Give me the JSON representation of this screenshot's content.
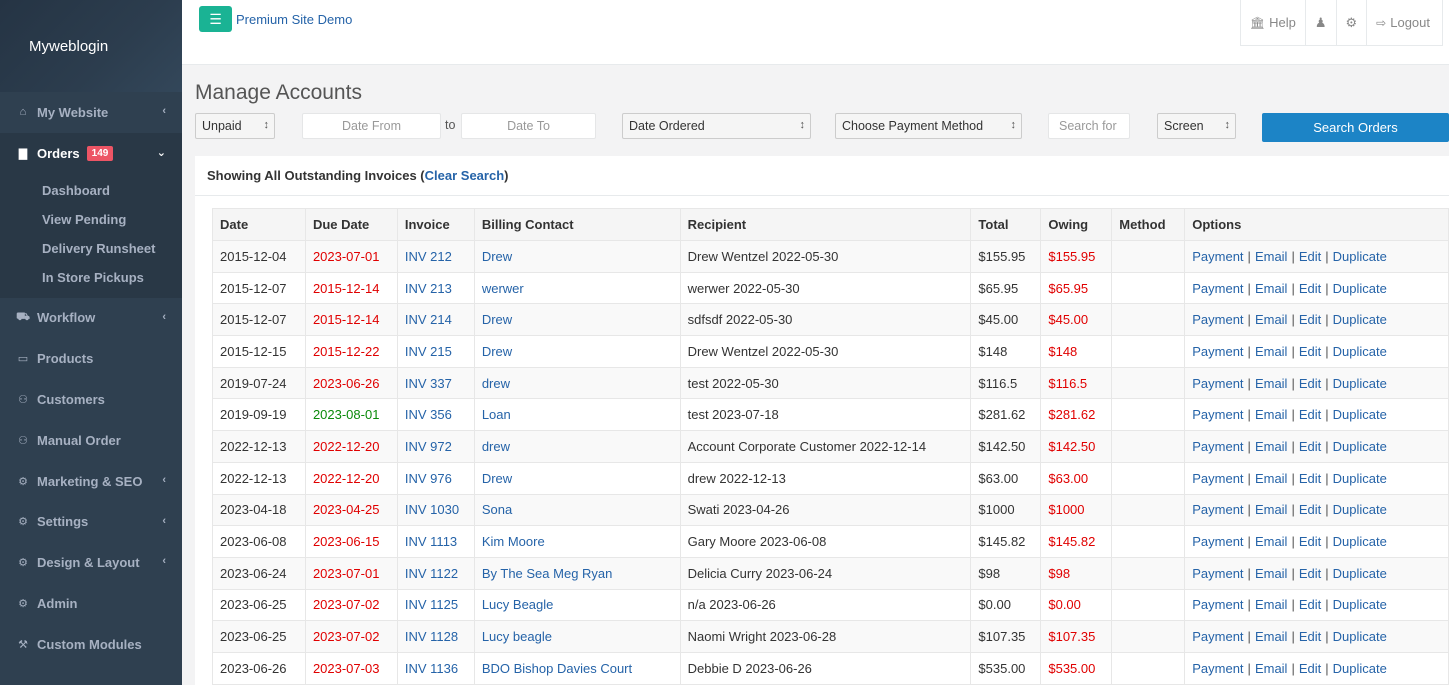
{
  "brand": "Myweblogin",
  "topbar": {
    "site_link": "Premium Site Demo",
    "help": "Help",
    "logout": "Logout"
  },
  "sidebar": {
    "items": [
      {
        "label": "My Website",
        "icon": "home-icon",
        "has_arrow": true
      },
      {
        "label": "Orders",
        "icon": "bar-chart-icon",
        "badge": "149",
        "has_arrow": true,
        "active": true
      },
      {
        "label": "Workflow",
        "icon": "truck-icon",
        "has_arrow": true
      },
      {
        "label": "Products",
        "icon": "desktop-icon",
        "has_arrow": false
      },
      {
        "label": "Customers",
        "icon": "users-icon",
        "has_arrow": false
      },
      {
        "label": "Manual Order",
        "icon": "users-icon",
        "has_arrow": false
      },
      {
        "label": "Marketing & SEO",
        "icon": "gear-icon",
        "has_arrow": true
      },
      {
        "label": "Settings",
        "icon": "gear-icon",
        "has_arrow": true
      },
      {
        "label": "Design & Layout",
        "icon": "gear-icon",
        "has_arrow": true
      },
      {
        "label": "Admin",
        "icon": "gear-icon",
        "has_arrow": false
      },
      {
        "label": "Custom Modules",
        "icon": "wrench-icon",
        "has_arrow": false
      }
    ],
    "orders_sub": [
      "Dashboard",
      "View Pending",
      "Delivery Runsheet",
      "In Store Pickups"
    ]
  },
  "main": {
    "title": "Manage Accounts",
    "filters": {
      "status": "Unpaid",
      "date_from_placeholder": "Date From",
      "to_label": "to",
      "date_to_placeholder": "Date To",
      "date_type": "Date Ordered",
      "payment_method": "Choose Payment Method",
      "search_placeholder": "Search for",
      "output": "Screen",
      "search_button": "Search Orders"
    },
    "panel_heading": "Showing All Outstanding Invoices (",
    "clear_search": "Clear Search",
    "panel_heading_end": ")"
  },
  "table": {
    "headers": [
      "Date",
      "Due Date",
      "Invoice",
      "Billing Contact",
      "Recipient",
      "Total",
      "Owing",
      "Method",
      "Options"
    ],
    "options": [
      "Payment",
      "Email",
      "Edit",
      "Duplicate"
    ],
    "rows": [
      {
        "date": "2015-12-04",
        "due": "2023-07-01",
        "due_status": "overdue",
        "invoice": "INV 212",
        "contact": "Drew",
        "recipient": "Drew Wentzel 2022-05-30",
        "total": "$155.95",
        "owing": "$155.95",
        "method": ""
      },
      {
        "date": "2015-12-07",
        "due": "2015-12-14",
        "due_status": "overdue",
        "invoice": "INV 213",
        "contact": "werwer",
        "recipient": "werwer 2022-05-30",
        "total": "$65.95",
        "owing": "$65.95",
        "method": ""
      },
      {
        "date": "2015-12-07",
        "due": "2015-12-14",
        "due_status": "overdue",
        "invoice": "INV 214",
        "contact": "Drew",
        "recipient": "sdfsdf 2022-05-30",
        "total": "$45.00",
        "owing": "$45.00",
        "method": ""
      },
      {
        "date": "2015-12-15",
        "due": "2015-12-22",
        "due_status": "overdue",
        "invoice": "INV 215",
        "contact": "Drew",
        "recipient": "Drew Wentzel 2022-05-30",
        "total": "$148",
        "owing": "$148",
        "method": ""
      },
      {
        "date": "2019-07-24",
        "due": "2023-06-26",
        "due_status": "overdue",
        "invoice": "INV 337",
        "contact": "drew",
        "recipient": "test 2022-05-30",
        "total": "$116.5",
        "owing": "$116.5",
        "method": ""
      },
      {
        "date": "2019-09-19",
        "due": "2023-08-01",
        "due_status": "current",
        "invoice": "INV 356",
        "contact": "Loan",
        "recipient": "test 2023-07-18",
        "total": "$281.62",
        "owing": "$281.62",
        "method": ""
      },
      {
        "date": "2022-12-13",
        "due": "2022-12-20",
        "due_status": "overdue",
        "invoice": "INV 972",
        "contact": "drew",
        "recipient": "Account Corporate Customer 2022-12-14",
        "total": "$142.50",
        "owing": "$142.50",
        "method": ""
      },
      {
        "date": "2022-12-13",
        "due": "2022-12-20",
        "due_status": "overdue",
        "invoice": "INV 976",
        "contact": "Drew",
        "recipient": "drew 2022-12-13",
        "total": "$63.00",
        "owing": "$63.00",
        "method": ""
      },
      {
        "date": "2023-04-18",
        "due": "2023-04-25",
        "due_status": "overdue",
        "invoice": "INV 1030",
        "contact": "Sona",
        "recipient": "Swati 2023-04-26",
        "total": "$1000",
        "owing": "$1000",
        "method": ""
      },
      {
        "date": "2023-06-08",
        "due": "2023-06-15",
        "due_status": "overdue",
        "invoice": "INV 1113",
        "contact": "Kim Moore",
        "recipient": "Gary Moore 2023-06-08",
        "total": "$145.82",
        "owing": "$145.82",
        "method": ""
      },
      {
        "date": "2023-06-24",
        "due": "2023-07-01",
        "due_status": "overdue",
        "invoice": "INV 1122",
        "contact": "By The Sea Meg Ryan",
        "recipient": "Delicia Curry 2023-06-24",
        "total": "$98",
        "owing": "$98",
        "method": ""
      },
      {
        "date": "2023-06-25",
        "due": "2023-07-02",
        "due_status": "overdue",
        "invoice": "INV 1125",
        "contact": "Lucy Beagle",
        "recipient": "n/a 2023-06-26",
        "total": "$0.00",
        "owing": "$0.00",
        "method": ""
      },
      {
        "date": "2023-06-25",
        "due": "2023-07-02",
        "due_status": "overdue",
        "invoice": "INV 1128",
        "contact": "Lucy beagle",
        "recipient": "Naomi Wright 2023-06-28",
        "total": "$107.35",
        "owing": "$107.35",
        "method": ""
      },
      {
        "date": "2023-06-26",
        "due": "2023-07-03",
        "due_status": "overdue",
        "invoice": "INV 1136",
        "contact": "BDO Bishop Davies Court",
        "recipient": "Debbie D 2023-06-26",
        "total": "$535.00",
        "owing": "$535.00",
        "method": ""
      }
    ]
  },
  "colors": {
    "sidebar_bg": "#2f4050",
    "accent_green": "#1ab394",
    "primary_blue": "#1c84c6",
    "link_blue": "#2563a8",
    "overdue_red": "#e00000",
    "current_green": "#0a8a0a",
    "badge_red": "#ed5565"
  }
}
